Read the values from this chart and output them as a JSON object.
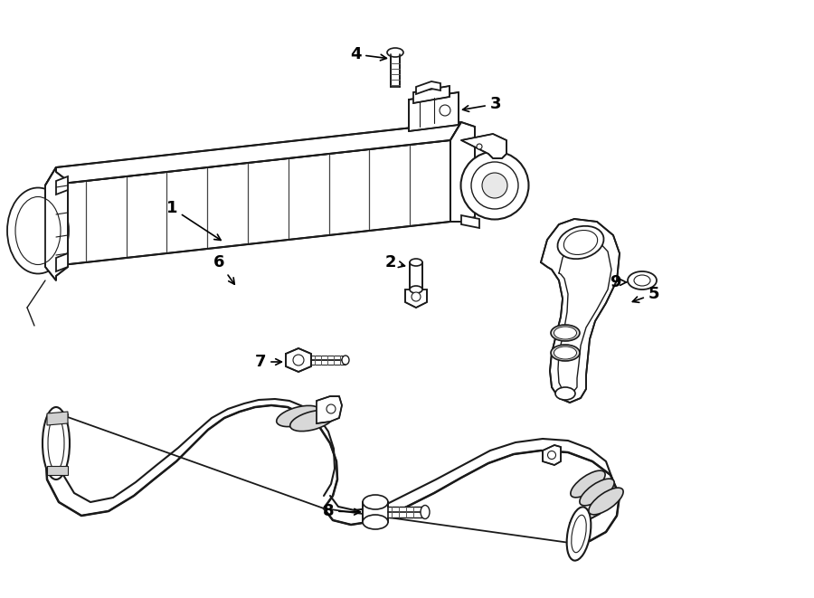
{
  "bg_color": "#ffffff",
  "lc": "#1a1a1a",
  "lw": 1.3,
  "label_fs": 13,
  "parts_labels": {
    "1": [
      0.185,
      0.595,
      0.225,
      0.565
    ],
    "2": [
      0.455,
      0.495,
      0.478,
      0.495
    ],
    "3": [
      0.575,
      0.775,
      0.545,
      0.775
    ],
    "4": [
      0.408,
      0.9,
      0.432,
      0.882
    ],
    "5": [
      0.755,
      0.495,
      0.73,
      0.495
    ],
    "6": [
      0.255,
      0.31,
      0.27,
      0.285
    ],
    "7": [
      0.295,
      0.4,
      0.318,
      0.4
    ],
    "8": [
      0.368,
      0.148,
      0.395,
      0.148
    ],
    "9": [
      0.682,
      0.31,
      0.708,
      0.31
    ]
  }
}
